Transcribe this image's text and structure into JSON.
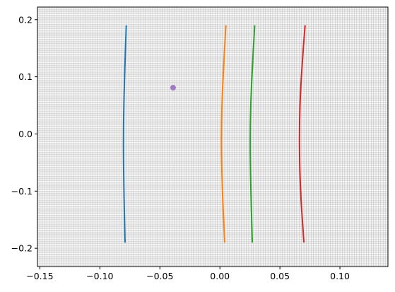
{
  "chart_data": {
    "type": "line",
    "title": "",
    "xlabel": "",
    "ylabel": "",
    "xlim": [
      -0.152,
      0.14
    ],
    "ylim": [
      -0.232,
      0.222
    ],
    "x_ticks": [
      -0.15,
      -0.1,
      -0.05,
      0.0,
      0.05,
      0.1
    ],
    "x_tick_labels": [
      "−0.15",
      "−0.10",
      "−0.05",
      "0.00",
      "0.05",
      "0.10"
    ],
    "y_ticks": [
      -0.2,
      -0.1,
      0.0,
      0.1,
      0.2
    ],
    "y_tick_labels": [
      "−0.2",
      "−0.1",
      "0.0",
      "0.1",
      "0.2"
    ],
    "grid": {
      "on": true,
      "minor": true,
      "minor_step": 0.002,
      "color": "#b0b0b0"
    },
    "series": [
      {
        "color": "#1f77b4",
        "kind": "line",
        "x": [
          -0.078,
          -0.0795,
          -0.0805,
          -0.08,
          -0.079
        ],
        "y": [
          0.19,
          0.1,
          0.0,
          -0.1,
          -0.19
        ]
      },
      {
        "color": "#ff7f0e",
        "kind": "line",
        "x": [
          0.005,
          0.0025,
          0.001,
          0.002,
          0.004
        ],
        "y": [
          0.19,
          0.1,
          0.0,
          -0.1,
          -0.19
        ]
      },
      {
        "color": "#2ca02c",
        "kind": "line",
        "x": [
          0.029,
          0.0265,
          0.025,
          0.0258,
          0.027
        ],
        "y": [
          0.19,
          0.1,
          0.0,
          -0.1,
          -0.19
        ]
      },
      {
        "color": "#d62728",
        "kind": "line",
        "x": [
          0.071,
          0.0675,
          0.066,
          0.067,
          0.07
        ],
        "y": [
          0.19,
          0.1,
          0.0,
          -0.1,
          -0.19
        ]
      },
      {
        "color": "#9467bd",
        "kind": "scatter",
        "x": [
          -0.039
        ],
        "y": [
          0.081
        ]
      }
    ]
  }
}
